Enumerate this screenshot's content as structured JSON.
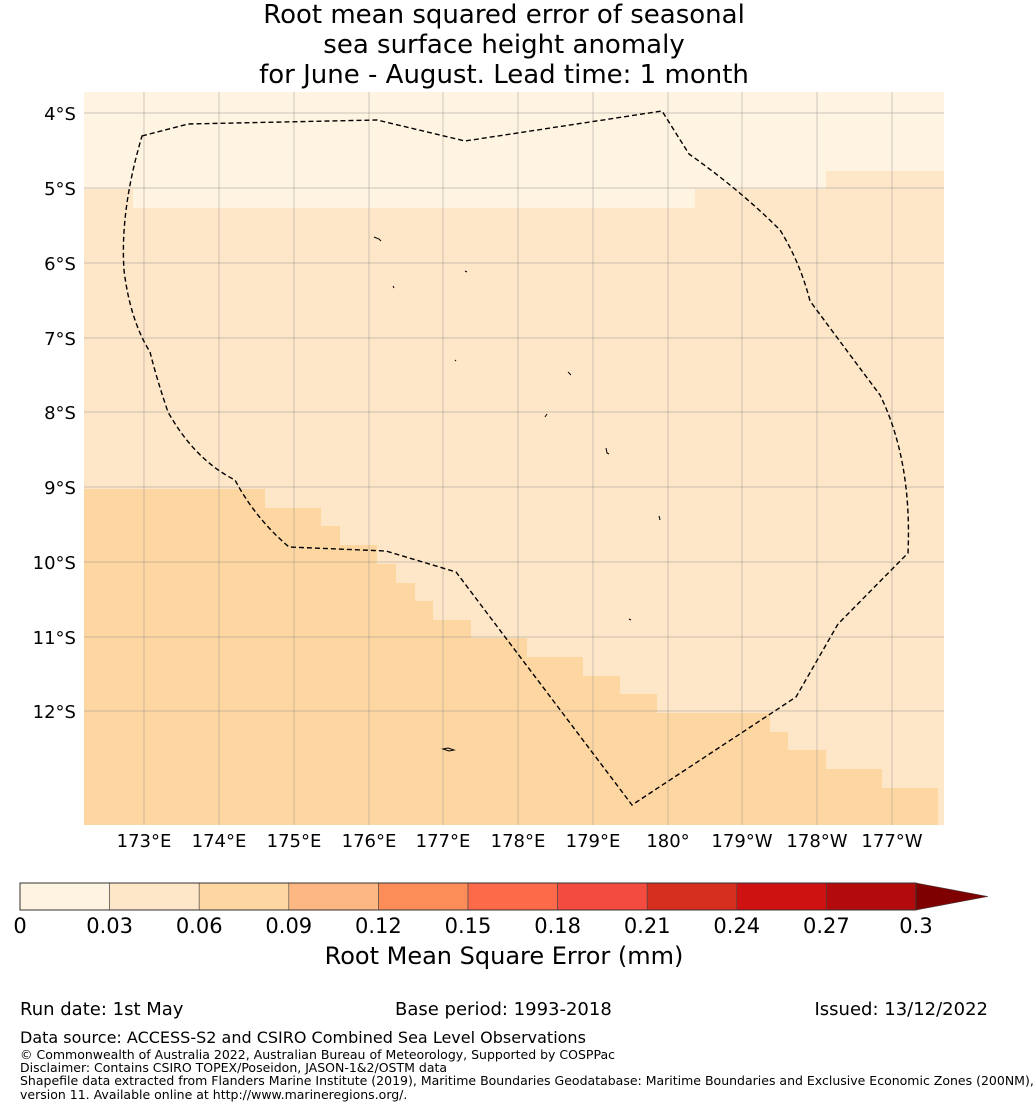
{
  "title": {
    "line1": "Root mean squared error of seasonal",
    "line2": "sea surface height anomaly",
    "line3": "for June - August. Lead time: 1 month"
  },
  "map": {
    "lon_ticks": [
      "173°E",
      "174°E",
      "175°E",
      "176°E",
      "177°E",
      "178°E",
      "179°E",
      "180°",
      "179°W",
      "178°W",
      "177°W"
    ],
    "lat_ticks": [
      "4°S",
      "5°S",
      "6°S",
      "7°S",
      "8°S",
      "9°S",
      "10°S",
      "11°S",
      "12°S"
    ],
    "lon_range": [
      172.2,
      183.7
    ],
    "lat_range": [
      -3.7,
      -13.5
    ],
    "rmse_bands": [
      {
        "range": "0-0.03",
        "color": "#fff3e1",
        "description": "northern edge"
      },
      {
        "range": "0.03-0.06",
        "color": "#fee6c8",
        "description": "central EEZ"
      },
      {
        "range": "0.06-0.09",
        "color": "#fdd6a2",
        "description": "southwest"
      }
    ]
  },
  "colorbar": {
    "ticks": [
      "0",
      "0.03",
      "0.06",
      "0.09",
      "0.12",
      "0.15",
      "0.18",
      "0.21",
      "0.24",
      "0.27",
      "0.3"
    ],
    "colors": [
      "#fff3e1",
      "#fee6c8",
      "#fdd6a2",
      "#fdb783",
      "#fc8d59",
      "#fc6a4a",
      "#f34b3f",
      "#d62f1f",
      "#ce1111",
      "#b30b0b"
    ],
    "extend_color": "#7f0000",
    "label": "Root Mean Square Error (mm)"
  },
  "footer": {
    "run_date": "Run date: 1st May",
    "base_period": "Base period: 1993-2018",
    "issued": "Issued: 13/12/2022",
    "data_source": "Data source: ACCESS-S2 and CSIRO Combined Sea Level Observations",
    "copyright": "© Commonwealth of Australia 2022, Australian Bureau of Meteorology, Supported by COSPPac",
    "disclaimer": "Disclaimer: Contains CSIRO TOPEX/Poseidon, JASON-1&2/OSTM data",
    "shapefile_line1": "Shapefile data extracted from Flanders Marine Institute (2019), Maritime Boundaries Geodatabase: Maritime Boundaries and Exclusive Economic Zones (200NM),",
    "shapefile_line2": "version 11. Available online at http://www.marineregions.org/."
  }
}
